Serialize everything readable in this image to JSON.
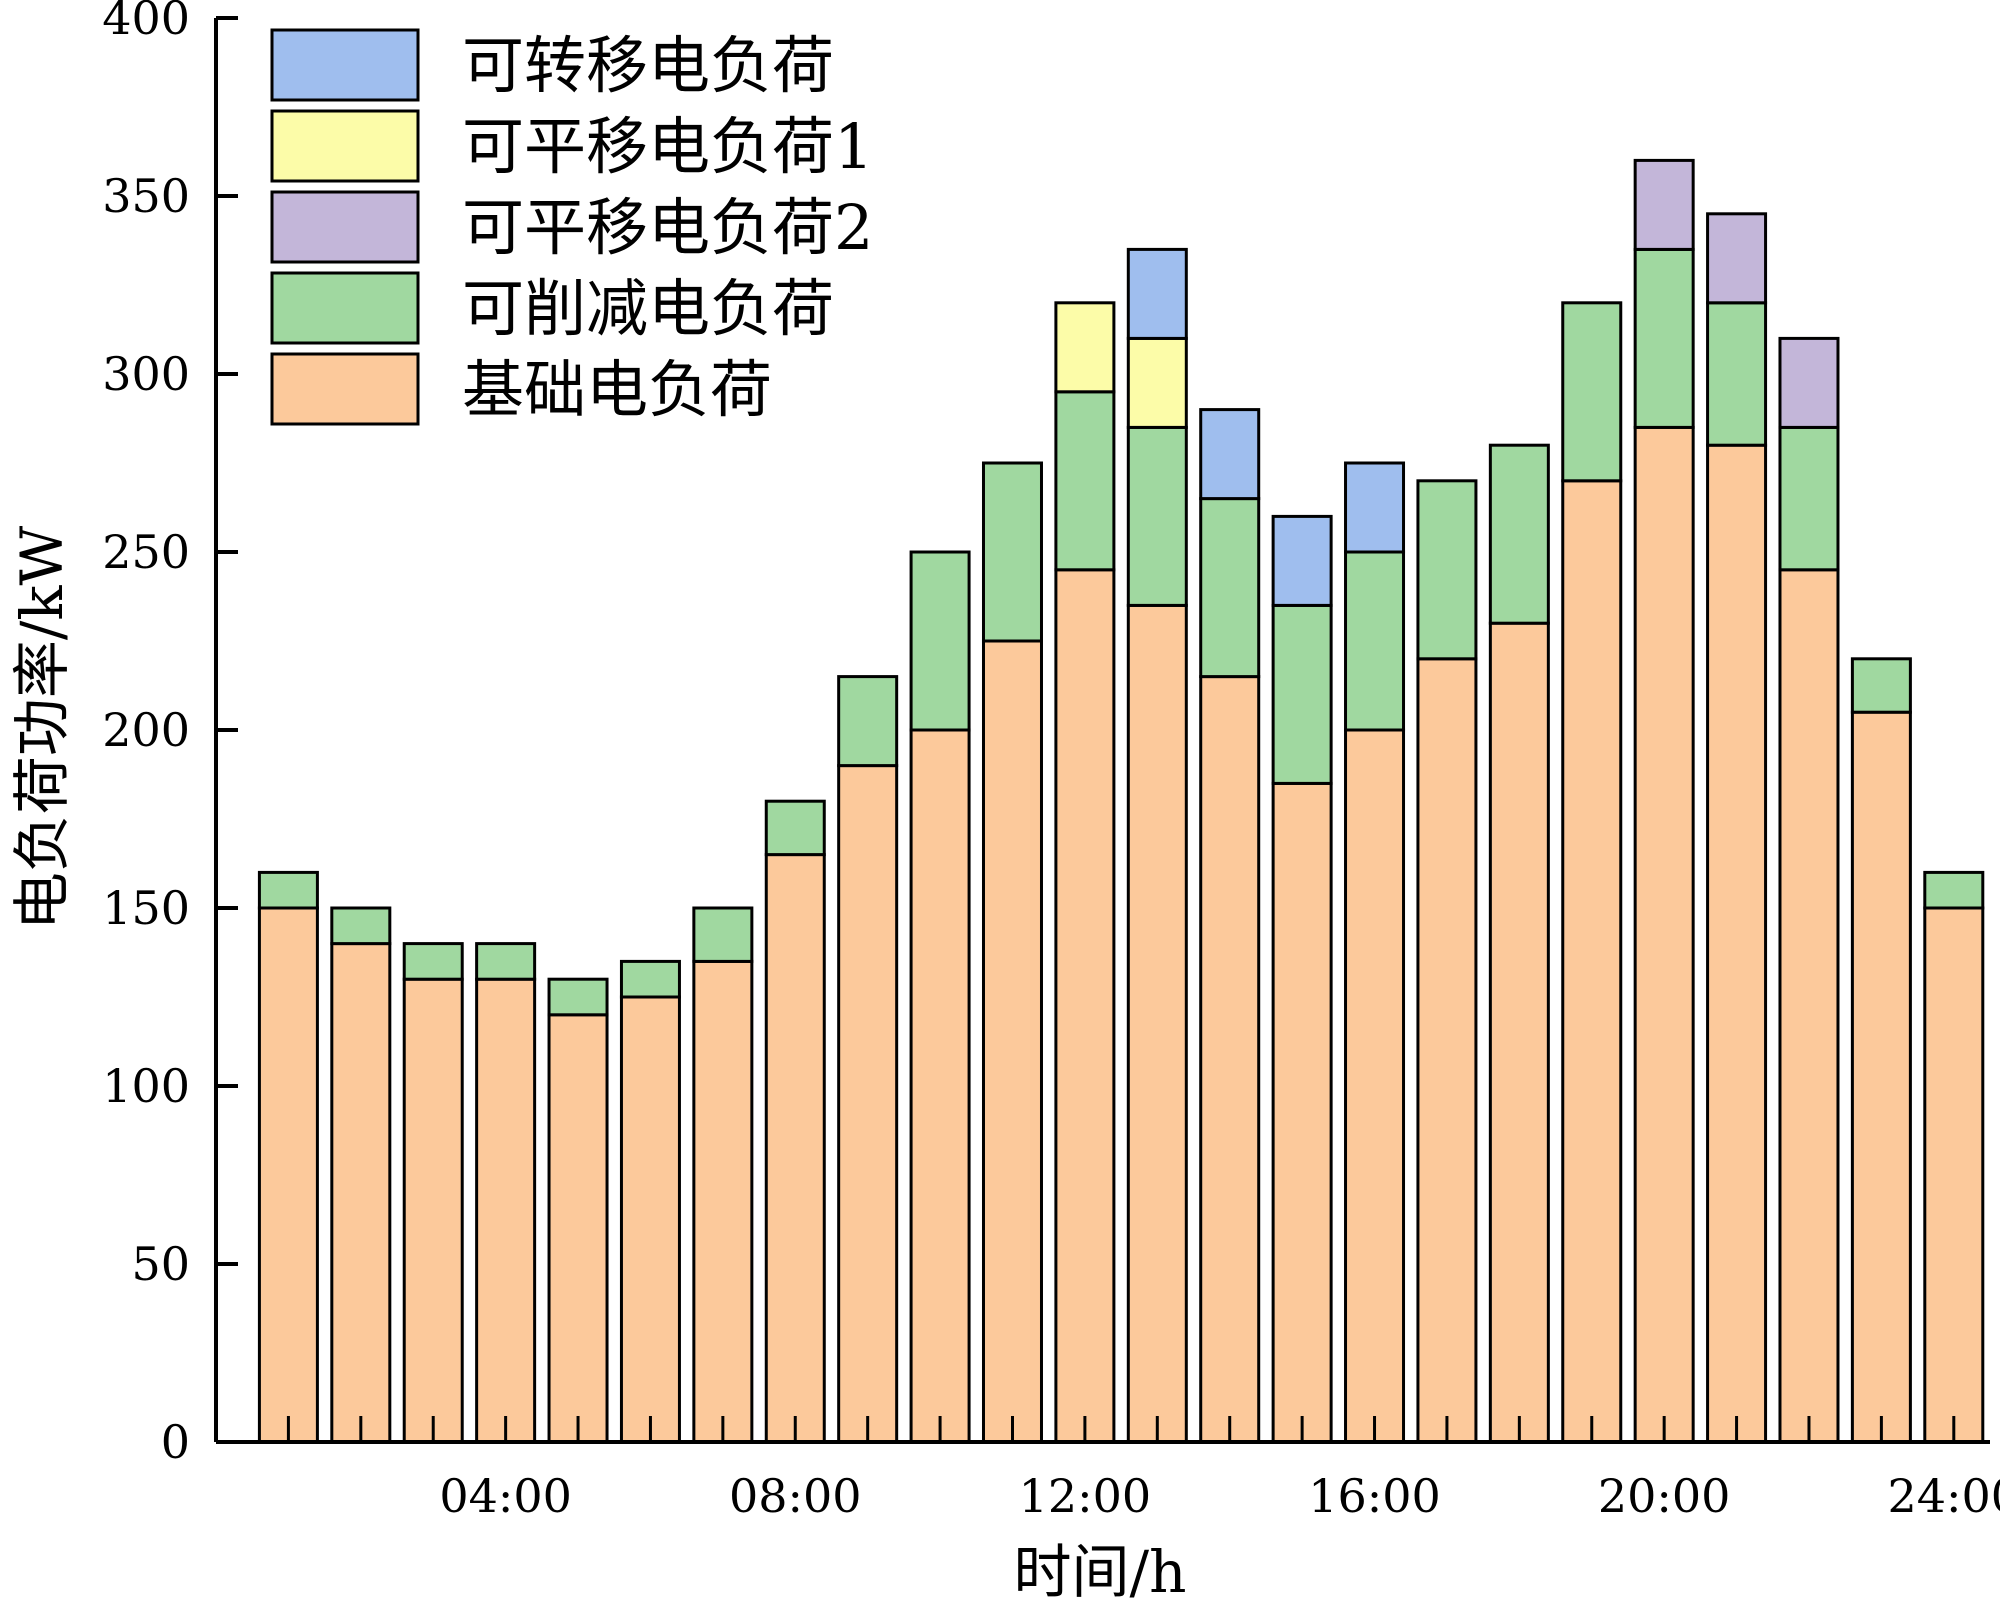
{
  "chart_data": {
    "type": "bar",
    "stacked": true,
    "xlabel": "时间/h",
    "ylabel": "电负荷功率/kW",
    "ylim": [
      0,
      400
    ],
    "yticks": [
      "0",
      "50",
      "100",
      "150",
      "200",
      "250",
      "300",
      "350",
      "400"
    ],
    "x": [
      1,
      2,
      3,
      4,
      5,
      6,
      7,
      8,
      9,
      10,
      11,
      12,
      13,
      14,
      15,
      16,
      17,
      18,
      19,
      20,
      21,
      22,
      23,
      24
    ],
    "xtick_labels": [
      {
        "hour": 4,
        "label": "04:00"
      },
      {
        "hour": 8,
        "label": "08:00"
      },
      {
        "hour": 12,
        "label": "12:00"
      },
      {
        "hour": 16,
        "label": "16:00"
      },
      {
        "hour": 20,
        "label": "20:00"
      },
      {
        "hour": 24,
        "label": "24:00"
      }
    ],
    "legend_position": "top-left",
    "series": [
      {
        "name": "基础电负荷",
        "color": "#FCC99B",
        "values": [
          150,
          140,
          130,
          130,
          120,
          125,
          135,
          165,
          190,
          200,
          225,
          245,
          235,
          215,
          185,
          200,
          220,
          230,
          270,
          285,
          280,
          245,
          205,
          150
        ]
      },
      {
        "name": "可削减电负荷",
        "color": "#A0D8A0",
        "values": [
          10,
          10,
          10,
          10,
          10,
          10,
          15,
          15,
          25,
          50,
          50,
          50,
          50,
          50,
          50,
          50,
          50,
          50,
          50,
          50,
          40,
          40,
          15,
          10
        ]
      },
      {
        "name": "可平移电负荷2",
        "color": "#C3B6D9",
        "values": [
          0,
          0,
          0,
          0,
          0,
          0,
          0,
          0,
          0,
          0,
          0,
          0,
          0,
          0,
          0,
          0,
          0,
          0,
          0,
          25,
          25,
          25,
          0,
          0
        ]
      },
      {
        "name": "可平移电负荷1",
        "color": "#FCFCA8",
        "values": [
          0,
          0,
          0,
          0,
          0,
          0,
          0,
          0,
          0,
          0,
          0,
          25,
          25,
          0,
          0,
          0,
          0,
          0,
          0,
          0,
          0,
          0,
          0,
          0
        ]
      },
      {
        "name": "可转移电负荷",
        "color": "#9FBEEE",
        "values": [
          0,
          0,
          0,
          0,
          0,
          0,
          0,
          0,
          0,
          0,
          0,
          0,
          25,
          25,
          25,
          25,
          0,
          0,
          0,
          0,
          0,
          0,
          0,
          0
        ]
      }
    ],
    "legend_order": [
      "可转移电负荷",
      "可平移电负荷1",
      "可平移电负荷2",
      "可削减电负荷",
      "基础电负荷"
    ]
  }
}
